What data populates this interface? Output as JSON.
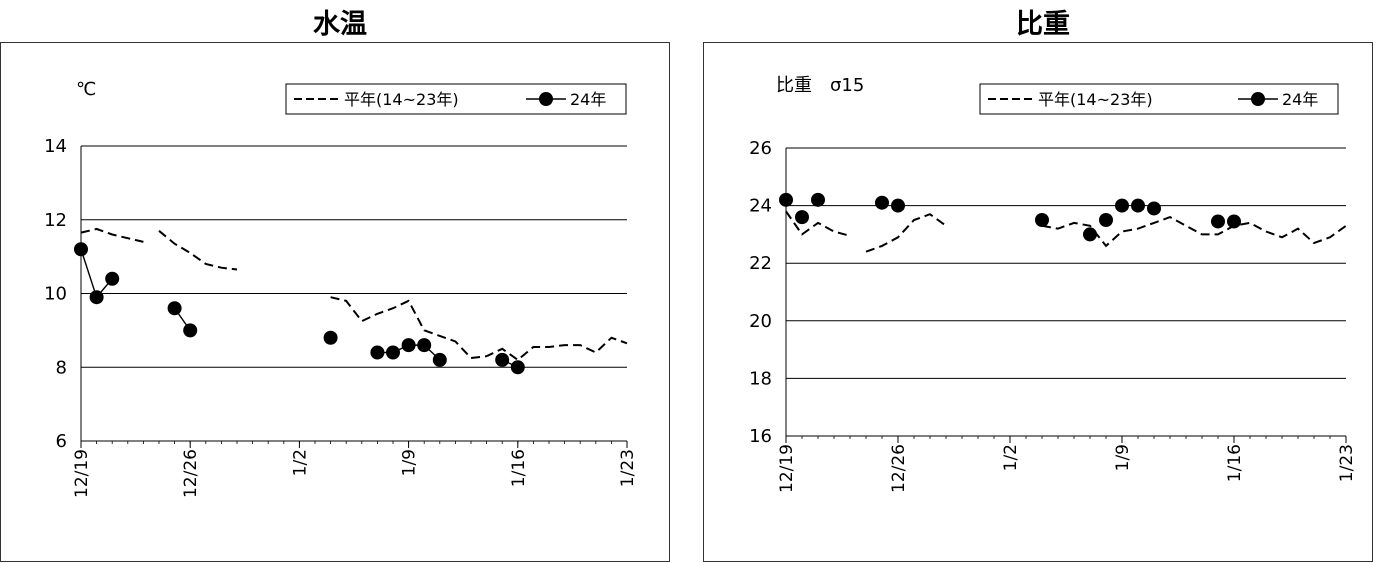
{
  "chart_data": [
    {
      "type": "line",
      "title": "水温",
      "unit_label": "℃",
      "ylim": [
        6,
        14
      ],
      "yticks": [
        6,
        8,
        10,
        12,
        14
      ],
      "xtick_labels": [
        "12/19",
        "12/26",
        "1/2",
        "1/9",
        "1/16",
        "1/23"
      ],
      "xlim_days": [
        0,
        35
      ],
      "legend": {
        "placement": "top-right",
        "entries": [
          "平年(14~23年)",
          "24年"
        ]
      },
      "grid": "horizontal",
      "series": [
        {
          "name": "平年(14~23年)",
          "style": "dashed",
          "segments": [
            {
              "x": [
                "12/19",
                "12/20",
                "12/21",
                "12/22",
                "12/23"
              ],
              "y": [
                11.65,
                11.75,
                11.6,
                11.5,
                11.4
              ]
            },
            {
              "x": [
                "12/24",
                "12/25",
                "12/26",
                "12/27",
                "12/28",
                "12/29"
              ],
              "y": [
                11.7,
                11.35,
                11.1,
                10.8,
                10.7,
                10.65
              ]
            },
            {
              "x": [
                "1/4",
                "1/5",
                "1/6",
                "1/7",
                "1/8",
                "1/9",
                "1/10",
                "1/11",
                "1/12",
                "1/13",
                "1/14",
                "1/15",
                "1/16",
                "1/17",
                "1/18",
                "1/19",
                "1/20",
                "1/21",
                "1/22",
                "1/23"
              ],
              "y": [
                9.9,
                9.8,
                9.25,
                9.45,
                9.6,
                9.8,
                9.0,
                8.85,
                8.7,
                8.25,
                8.3,
                8.5,
                8.2,
                8.55,
                8.55,
                8.6,
                8.6,
                8.4,
                8.8,
                8.65
              ]
            }
          ]
        },
        {
          "name": "24年",
          "style": "marker-line",
          "segments": [
            {
              "x": [
                "12/19",
                "12/20",
                "12/21"
              ],
              "y": [
                11.2,
                9.9,
                10.4
              ]
            },
            {
              "x": [
                "12/25",
                "12/26"
              ],
              "y": [
                9.6,
                9.0
              ]
            },
            {
              "x": [
                "1/4"
              ],
              "y": [
                8.8
              ]
            },
            {
              "x": [
                "1/7",
                "1/8",
                "1/9",
                "1/10",
                "1/11"
              ],
              "y": [
                8.4,
                8.4,
                8.6,
                8.6,
                8.2
              ]
            },
            {
              "x": [
                "1/15",
                "1/16"
              ],
              "y": [
                8.2,
                8.0
              ]
            }
          ]
        }
      ]
    },
    {
      "type": "line",
      "title": "比重",
      "unit_label": "比重　σ15",
      "ylim": [
        16,
        26
      ],
      "yticks": [
        16,
        18,
        20,
        22,
        24,
        26
      ],
      "xtick_labels": [
        "12/19",
        "12/26",
        "1/2",
        "1/9",
        "1/16",
        "1/23"
      ],
      "xlim_days": [
        0,
        35
      ],
      "legend": {
        "placement": "top-right",
        "entries": [
          "平年(14~23年)",
          "24年"
        ]
      },
      "grid": "horizontal",
      "series": [
        {
          "name": "平年(14~23年)",
          "style": "dashed",
          "segments": [
            {
              "x": [
                "12/19",
                "12/20",
                "12/21",
                "12/22",
                "12/23"
              ],
              "y": [
                23.8,
                23.0,
                23.4,
                23.1,
                22.95
              ]
            },
            {
              "x": [
                "12/24",
                "12/25",
                "12/26",
                "12/27",
                "12/28",
                "12/29"
              ],
              "y": [
                22.4,
                22.6,
                22.9,
                23.5,
                23.7,
                23.3
              ]
            },
            {
              "x": [
                "1/4",
                "1/5",
                "1/6",
                "1/7",
                "1/8",
                "1/9",
                "1/10",
                "1/11",
                "1/12",
                "1/13",
                "1/14",
                "1/15",
                "1/16",
                "1/17",
                "1/18",
                "1/19",
                "1/20",
                "1/21",
                "1/22",
                "1/23"
              ],
              "y": [
                23.3,
                23.2,
                23.4,
                23.3,
                22.6,
                23.1,
                23.2,
                23.4,
                23.6,
                23.3,
                23.0,
                23.0,
                23.3,
                23.4,
                23.1,
                22.9,
                23.2,
                22.7,
                22.9,
                23.3
              ]
            }
          ]
        },
        {
          "name": "24年",
          "style": "marker-only",
          "segments": [
            {
              "x": [
                "12/19",
                "12/20",
                "12/21"
              ],
              "y": [
                24.2,
                23.6,
                24.2
              ]
            },
            {
              "x": [
                "12/25",
                "12/26"
              ],
              "y": [
                24.1,
                24.0
              ]
            },
            {
              "x": [
                "1/4"
              ],
              "y": [
                23.5
              ]
            },
            {
              "x": [
                "1/7",
                "1/8",
                "1/9",
                "1/10",
                "1/11"
              ],
              "y": [
                23.0,
                23.5,
                24.0,
                24.0,
                23.9
              ]
            },
            {
              "x": [
                "1/15",
                "1/16"
              ],
              "y": [
                23.45,
                23.45
              ]
            }
          ]
        }
      ]
    }
  ]
}
